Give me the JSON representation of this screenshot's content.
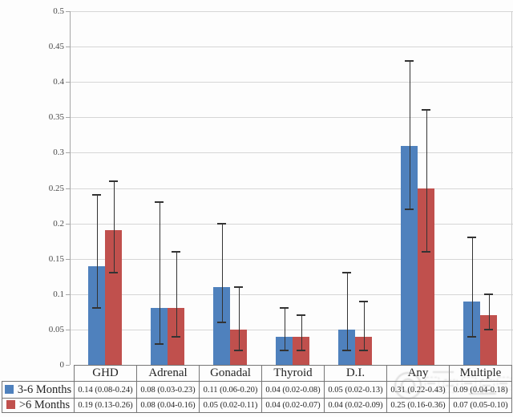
{
  "chart_data": {
    "type": "bar",
    "title": "",
    "categories": [
      "GHD",
      "Adrenal",
      "Gonadal",
      "Thyroid",
      "D.I.",
      "Any",
      "Multiple"
    ],
    "series": [
      {
        "name": "3-6 Months",
        "color": "#4f81bd",
        "values": [
          0.14,
          0.08,
          0.11,
          0.04,
          0.05,
          0.31,
          0.09
        ],
        "ci_low": [
          0.08,
          0.03,
          0.06,
          0.02,
          0.02,
          0.22,
          0.04
        ],
        "ci_high": [
          0.24,
          0.23,
          0.2,
          0.08,
          0.13,
          0.43,
          0.18
        ],
        "cell_labels": [
          "0.14 (0.08-0.24)",
          "0.08 (0.03-0.23)",
          "0.11 (0.06-0.20)",
          "0.04 (0.02-0.08)",
          "0.05 (0.02-0.13)",
          "0.31 (0.22-0.43)",
          "0.09 (0.04-0.18)"
        ]
      },
      {
        "name": ">6 Months",
        "color": "#c0504d",
        "values": [
          0.19,
          0.08,
          0.05,
          0.04,
          0.04,
          0.25,
          0.07
        ],
        "ci_low": [
          0.13,
          0.04,
          0.02,
          0.02,
          0.02,
          0.16,
          0.05
        ],
        "ci_high": [
          0.26,
          0.16,
          0.11,
          0.07,
          0.09,
          0.36,
          0.1
        ],
        "cell_labels": [
          "0.19 (0.13-0.26)",
          "0.08 (0.04-0.16)",
          "0.05 (0.02-0.11)",
          "0.04 (0.02-0.07)",
          "0.04 (0.02-0.09)",
          "0.25 (0.16-0.36)",
          "0.07 (0.05-0.10)"
        ]
      }
    ],
    "ylim": [
      0,
      0.5
    ],
    "ytick_step": 0.05,
    "ytick_labels": [
      "0.5",
      "0.45",
      "0.4",
      "0.35",
      "0.3",
      "0.25",
      "0.2",
      "0.15",
      "0.1",
      "0.05",
      "0"
    ],
    "grid": true,
    "has_error_bars": true,
    "legend_position": "data-table-left-column",
    "error_bar_color": "#333333",
    "gridline_color": "#d6d6d6",
    "axis_color": "#a6a6a6",
    "data_table_shown": true
  },
  "watermark": {
    "present": true,
    "color": "#8d8d8d",
    "location": "bottom-right-over-table"
  }
}
